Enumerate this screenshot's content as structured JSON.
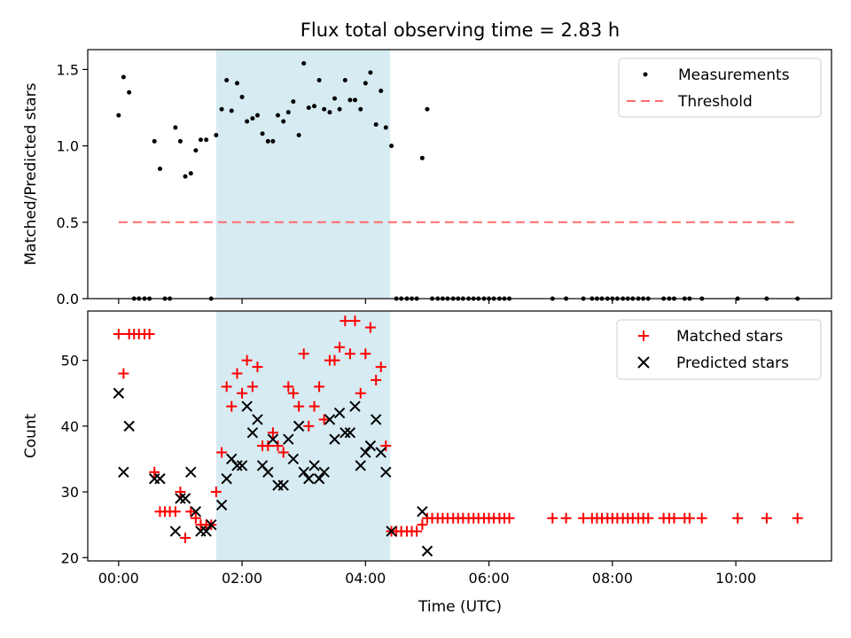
{
  "chart_data": {
    "title": "Flux total observing time = 2.83 h",
    "xlabel": "Time (UTC)",
    "xlim": [
      -0.5,
      11.55
    ],
    "x_ticks": [
      0,
      2,
      4,
      6,
      8,
      10
    ],
    "x_tick_labels": [
      "00:00",
      "02:00",
      "04:00",
      "06:00",
      "08:00",
      "10:00"
    ],
    "shaded_region": {
      "start": 1.58,
      "end": 4.4,
      "color": "#add8e6"
    },
    "colors": {
      "red": "#ff0000",
      "black": "#000000",
      "threshold": "#ff6b6b",
      "shade": "#add8e6"
    },
    "panels": [
      {
        "type": "scatter",
        "ylabel": "Matched/Predicted stars",
        "ylim": [
          0,
          1.63
        ],
        "y_ticks": [
          0.0,
          0.5,
          1.0,
          1.5
        ],
        "y_tick_labels": [
          "0.0",
          "0.5",
          "1.0",
          "1.5"
        ],
        "legend": [
          "Measurements",
          "Threshold"
        ],
        "threshold": {
          "value": 0.5,
          "x_range": [
            0,
            11
          ]
        },
        "measurements": {
          "x": [
            0.0,
            0.08,
            0.17,
            0.25,
            0.33,
            0.42,
            0.5,
            0.58,
            0.67,
            0.75,
            0.83,
            0.92,
            1.0,
            1.08,
            1.17,
            1.25,
            1.33,
            1.42,
            1.5,
            1.58,
            1.67,
            1.75,
            1.83,
            1.92,
            2.0,
            2.08,
            2.17,
            2.25,
            2.33,
            2.42,
            2.5,
            2.58,
            2.67,
            2.75,
            2.83,
            2.92,
            3.0,
            3.08,
            3.17,
            3.25,
            3.33,
            3.42,
            3.5,
            3.58,
            3.67,
            3.75,
            3.83,
            3.92,
            4.0,
            4.08,
            4.17,
            4.25,
            4.33,
            4.42,
            4.5,
            4.58,
            4.67,
            4.75,
            4.83,
            4.92,
            5.0,
            5.08,
            5.17,
            5.25,
            5.33,
            5.42,
            5.5,
            5.58,
            5.67,
            5.75,
            5.83,
            5.92,
            6.0,
            6.08,
            6.17,
            6.25,
            6.33,
            7.03,
            7.25,
            7.53,
            7.67,
            7.75,
            7.83,
            7.92,
            8.0,
            8.08,
            8.17,
            8.25,
            8.33,
            8.42,
            8.5,
            8.58,
            8.83,
            8.92,
            9.0,
            9.17,
            9.25,
            9.45,
            10.03,
            10.5,
            11.0
          ],
          "y": [
            1.2,
            1.45,
            1.35,
            0.0,
            0.0,
            0.0,
            0.0,
            1.03,
            0.85,
            0.0,
            0.0,
            1.12,
            1.03,
            0.8,
            0.82,
            0.97,
            1.04,
            1.04,
            0.0,
            1.07,
            1.24,
            1.43,
            1.23,
            1.41,
            1.32,
            1.16,
            1.18,
            1.2,
            1.08,
            1.03,
            1.03,
            1.2,
            1.16,
            1.22,
            1.29,
            1.07,
            1.54,
            1.25,
            1.26,
            1.43,
            1.24,
            1.22,
            1.31,
            1.24,
            1.43,
            1.3,
            1.3,
            1.24,
            1.41,
            1.48,
            1.14,
            1.36,
            1.12,
            1.0,
            0.0,
            0.0,
            0.0,
            0.0,
            0.0,
            0.92,
            1.24,
            0.0,
            0.0,
            0.0,
            0.0,
            0.0,
            0.0,
            0.0,
            0.0,
            0.0,
            0.0,
            0.0,
            0.0,
            0.0,
            0.0,
            0.0,
            0.0,
            0.0,
            0.0,
            0.0,
            0.0,
            0.0,
            0.0,
            0.0,
            0.0,
            0.0,
            0.0,
            0.0,
            0.0,
            0.0,
            0.0,
            0.0,
            0.0,
            0.0,
            0.0,
            0.0,
            0.0,
            0.0,
            0.0,
            0.0,
            0.0
          ]
        }
      },
      {
        "type": "scatter",
        "ylabel": "Count",
        "ylim": [
          19.5,
          57.5
        ],
        "y_ticks": [
          20,
          30,
          40,
          50
        ],
        "y_tick_labels": [
          "20",
          "30",
          "40",
          "50"
        ],
        "legend": [
          "Matched stars",
          "Predicted stars"
        ],
        "series": [
          {
            "name": "Matched stars",
            "marker": "plus",
            "x": [
              0.0,
              0.08,
              0.17,
              0.25,
              0.33,
              0.42,
              0.5,
              0.58,
              0.67,
              0.75,
              0.83,
              0.92,
              1.0,
              1.08,
              1.17,
              1.25,
              1.33,
              1.42,
              1.5,
              1.58,
              1.67,
              1.75,
              1.83,
              1.92,
              2.0,
              2.08,
              2.17,
              2.25,
              2.33,
              2.42,
              2.5,
              2.58,
              2.67,
              2.75,
              2.83,
              2.92,
              3.0,
              3.08,
              3.17,
              3.25,
              3.33,
              3.42,
              3.5,
              3.58,
              3.67,
              3.75,
              3.83,
              3.92,
              4.0,
              4.08,
              4.17,
              4.25,
              4.33,
              4.42,
              4.5,
              4.58,
              4.67,
              4.75,
              4.83,
              4.92,
              5.0,
              5.08,
              5.17,
              5.25,
              5.33,
              5.42,
              5.5,
              5.58,
              5.67,
              5.75,
              5.83,
              5.92,
              6.0,
              6.08,
              6.17,
              6.25,
              6.33,
              7.03,
              7.25,
              7.53,
              7.67,
              7.75,
              7.83,
              7.92,
              8.0,
              8.08,
              8.17,
              8.25,
              8.33,
              8.42,
              8.5,
              8.58,
              8.83,
              8.92,
              9.0,
              9.17,
              9.25,
              9.45,
              10.03,
              10.5,
              11.0
            ],
            "y": [
              54,
              48,
              54,
              54,
              54,
              54,
              54,
              33,
              27,
              27,
              27,
              27,
              30,
              23,
              27,
              26,
              25,
              25,
              25,
              30,
              36,
              46,
              43,
              48,
              45,
              50,
              46,
              49,
              37,
              37,
              39,
              37,
              36,
              46,
              45,
              43,
              51,
              40,
              43,
              46,
              41,
              50,
              50,
              52,
              56,
              51,
              56,
              45,
              51,
              55,
              47,
              49,
              37,
              24,
              24,
              24,
              24,
              24,
              24,
              25,
              26,
              26,
              26,
              26,
              26,
              26,
              26,
              26,
              26,
              26,
              26,
              26,
              26,
              26,
              26,
              26,
              26,
              26,
              26,
              26,
              26,
              26,
              26,
              26,
              26,
              26,
              26,
              26,
              26,
              26,
              26,
              26,
              26,
              26,
              26,
              26,
              26,
              26,
              26,
              26,
              26
            ]
          },
          {
            "name": "Predicted stars",
            "marker": "x",
            "x": [
              0.0,
              0.08,
              0.17,
              0.58,
              0.67,
              0.92,
              1.0,
              1.08,
              1.17,
              1.25,
              1.33,
              1.42,
              1.5,
              1.67,
              1.75,
              1.83,
              1.92,
              2.0,
              2.08,
              2.17,
              2.25,
              2.33,
              2.42,
              2.5,
              2.58,
              2.67,
              2.75,
              2.83,
              2.92,
              3.0,
              3.08,
              3.17,
              3.25,
              3.33,
              3.42,
              3.5,
              3.58,
              3.67,
              3.75,
              3.83,
              3.92,
              4.0,
              4.08,
              4.17,
              4.25,
              4.33,
              4.42,
              4.92,
              5.0
            ],
            "y": [
              45,
              33,
              40,
              32,
              32,
              24,
              29,
              29,
              33,
              27,
              24,
              24,
              25,
              28,
              32,
              35,
              34,
              34,
              43,
              39,
              41,
              34,
              33,
              38,
              31,
              31,
              38,
              35,
              40,
              33,
              32,
              34,
              32,
              33,
              41,
              38,
              42,
              39,
              39,
              43,
              34,
              36,
              37,
              41,
              36,
              33,
              24,
              27,
              21
            ]
          }
        ]
      }
    ]
  }
}
